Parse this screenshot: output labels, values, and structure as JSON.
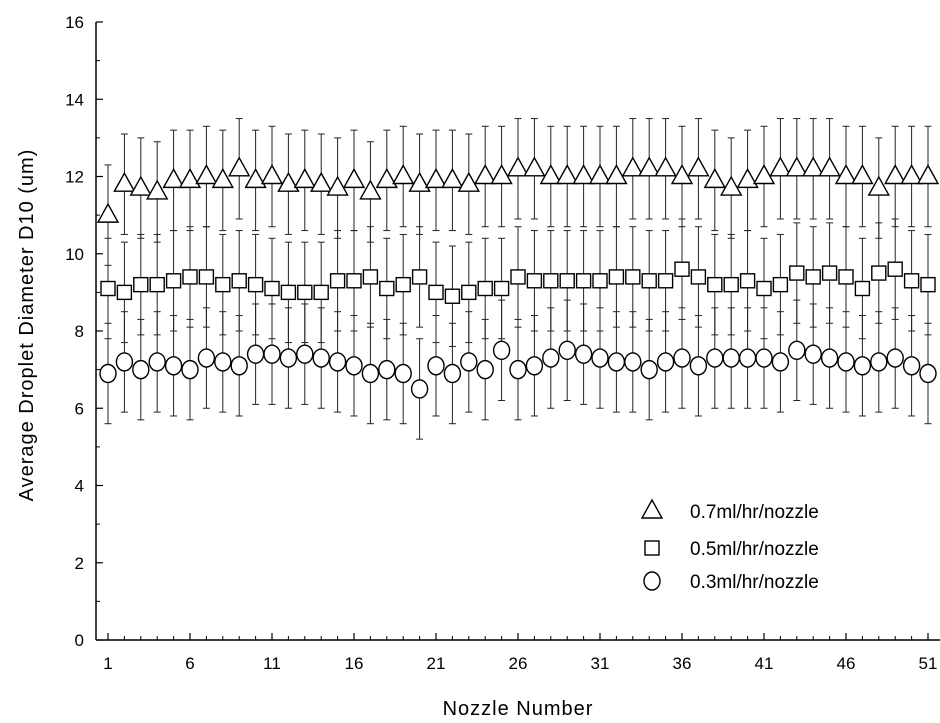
{
  "chart_data": {
    "type": "scatter",
    "title": "",
    "xlabel": "Nozzle Number",
    "ylabel": "Average Droplet Diameter D10 (um)",
    "xlim": [
      0,
      52
    ],
    "ylim": [
      0,
      16
    ],
    "xticks": [
      1,
      6,
      11,
      16,
      21,
      26,
      31,
      36,
      41,
      46,
      51
    ],
    "xtick_labels": [
      "1",
      "6",
      "11",
      "16",
      "21",
      "26",
      "31",
      "36",
      "41",
      "46",
      "51"
    ],
    "yticks": [
      0,
      2,
      4,
      6,
      8,
      10,
      12,
      14,
      16
    ],
    "ytick_labels": [
      "0",
      "2",
      "4",
      "6",
      "8",
      "10",
      "12",
      "14",
      "16"
    ],
    "grid": false,
    "legend_position": "bottom-right",
    "error_bars": "plus-minus 1.3 um",
    "series": [
      {
        "name": "0.7ml/hr/nozzle",
        "marker": "triangle",
        "x": [
          1,
          2,
          3,
          4,
          5,
          6,
          7,
          8,
          9,
          10,
          11,
          12,
          13,
          14,
          15,
          16,
          17,
          18,
          19,
          20,
          21,
          22,
          23,
          24,
          25,
          26,
          27,
          28,
          29,
          30,
          31,
          32,
          33,
          34,
          35,
          36,
          37,
          38,
          39,
          40,
          41,
          42,
          43,
          44,
          45,
          46,
          47,
          48,
          49,
          50,
          51
        ],
        "values": [
          11.0,
          11.8,
          11.7,
          11.6,
          11.9,
          11.9,
          12.0,
          11.9,
          12.2,
          11.9,
          12.0,
          11.8,
          11.9,
          11.8,
          11.7,
          11.9,
          11.6,
          11.9,
          12.0,
          11.8,
          11.9,
          11.9,
          11.8,
          12.0,
          12.0,
          12.2,
          12.2,
          12.0,
          12.0,
          12.0,
          12.0,
          12.0,
          12.2,
          12.2,
          12.2,
          12.0,
          12.2,
          11.9,
          11.7,
          11.9,
          12.0,
          12.2,
          12.2,
          12.2,
          12.2,
          12.0,
          12.0,
          11.7,
          12.0,
          12.0,
          12.0
        ],
        "errors": [
          1.3,
          1.3,
          1.3,
          1.3,
          1.3,
          1.3,
          1.3,
          1.3,
          1.3,
          1.3,
          1.3,
          1.3,
          1.3,
          1.3,
          1.3,
          1.3,
          1.3,
          1.3,
          1.3,
          1.3,
          1.3,
          1.3,
          1.3,
          1.3,
          1.3,
          1.3,
          1.3,
          1.3,
          1.3,
          1.3,
          1.3,
          1.3,
          1.3,
          1.3,
          1.3,
          1.3,
          1.3,
          1.3,
          1.3,
          1.3,
          1.3,
          1.3,
          1.3,
          1.3,
          1.3,
          1.3,
          1.3,
          1.3,
          1.3,
          1.3,
          1.3
        ]
      },
      {
        "name": "0.5ml/hr/nozzle",
        "marker": "square",
        "x": [
          1,
          2,
          3,
          4,
          5,
          6,
          7,
          8,
          9,
          10,
          11,
          12,
          13,
          14,
          15,
          16,
          17,
          18,
          19,
          20,
          21,
          22,
          23,
          24,
          25,
          26,
          27,
          28,
          29,
          30,
          31,
          32,
          33,
          34,
          35,
          36,
          37,
          38,
          39,
          40,
          41,
          42,
          43,
          44,
          45,
          46,
          47,
          48,
          49,
          50,
          51
        ],
        "values": [
          9.1,
          9.0,
          9.2,
          9.2,
          9.3,
          9.4,
          9.4,
          9.2,
          9.3,
          9.2,
          9.1,
          9.0,
          9.0,
          9.0,
          9.3,
          9.3,
          9.4,
          9.1,
          9.2,
          9.4,
          9.0,
          8.9,
          9.0,
          9.1,
          9.1,
          9.4,
          9.3,
          9.3,
          9.3,
          9.3,
          9.3,
          9.4,
          9.4,
          9.3,
          9.3,
          9.6,
          9.4,
          9.2,
          9.2,
          9.3,
          9.1,
          9.2,
          9.5,
          9.4,
          9.5,
          9.4,
          9.1,
          9.5,
          9.6,
          9.3,
          9.2
        ],
        "errors": [
          1.3,
          1.3,
          1.3,
          1.3,
          1.3,
          1.3,
          1.3,
          1.3,
          1.3,
          1.3,
          1.3,
          1.3,
          1.3,
          1.3,
          1.3,
          1.3,
          1.3,
          1.3,
          1.3,
          1.3,
          1.3,
          1.3,
          1.3,
          1.3,
          1.3,
          1.3,
          1.3,
          1.3,
          1.3,
          1.3,
          1.3,
          1.3,
          1.3,
          1.3,
          1.3,
          1.3,
          1.3,
          1.3,
          1.3,
          1.3,
          1.3,
          1.3,
          1.3,
          1.3,
          1.3,
          1.3,
          1.3,
          1.3,
          1.3,
          1.3,
          1.3
        ]
      },
      {
        "name": "0.3ml/hr/nozzle",
        "marker": "circle",
        "x": [
          1,
          2,
          3,
          4,
          5,
          6,
          7,
          8,
          9,
          10,
          11,
          12,
          13,
          14,
          15,
          16,
          17,
          18,
          19,
          20,
          21,
          22,
          23,
          24,
          25,
          26,
          27,
          28,
          29,
          30,
          31,
          32,
          33,
          34,
          35,
          36,
          37,
          38,
          39,
          40,
          41,
          42,
          43,
          44,
          45,
          46,
          47,
          48,
          49,
          50,
          51
        ],
        "values": [
          6.9,
          7.2,
          7.0,
          7.2,
          7.1,
          7.0,
          7.3,
          7.2,
          7.1,
          7.4,
          7.4,
          7.3,
          7.4,
          7.3,
          7.2,
          7.1,
          6.9,
          7.0,
          6.9,
          6.5,
          7.1,
          6.9,
          7.2,
          7.0,
          7.5,
          7.0,
          7.1,
          7.3,
          7.5,
          7.4,
          7.3,
          7.2,
          7.2,
          7.0,
          7.2,
          7.3,
          7.1,
          7.3,
          7.3,
          7.3,
          7.3,
          7.2,
          7.5,
          7.4,
          7.3,
          7.2,
          7.1,
          7.2,
          7.3,
          7.1,
          6.9
        ],
        "errors": [
          1.3,
          1.3,
          1.3,
          1.3,
          1.3,
          1.3,
          1.3,
          1.3,
          1.3,
          1.3,
          1.3,
          1.3,
          1.3,
          1.3,
          1.3,
          1.3,
          1.3,
          1.3,
          1.3,
          1.3,
          1.3,
          1.3,
          1.3,
          1.3,
          1.3,
          1.3,
          1.3,
          1.3,
          1.3,
          1.3,
          1.3,
          1.3,
          1.3,
          1.3,
          1.3,
          1.3,
          1.3,
          1.3,
          1.3,
          1.3,
          1.3,
          1.3,
          1.3,
          1.3,
          1.3,
          1.3,
          1.3,
          1.3,
          1.3,
          1.3,
          1.3
        ]
      }
    ],
    "colors": {
      "axis": "#000000",
      "marker_stroke": "#000000",
      "marker_fill": "#ffffff",
      "errorbar": "#222222"
    }
  }
}
